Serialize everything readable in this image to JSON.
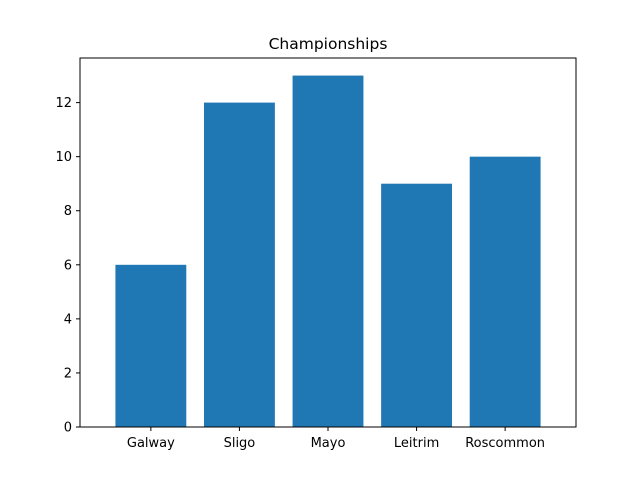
{
  "chart_data": {
    "type": "bar",
    "title": "Championships",
    "xlabel": "",
    "ylabel": "",
    "categories": [
      "Galway",
      "Sligo",
      "Mayo",
      "Leitrim",
      "Roscommon"
    ],
    "values": [
      6,
      12,
      13,
      9,
      10
    ],
    "ylim": [
      0,
      13.65
    ],
    "yticks": [
      0,
      2,
      4,
      6,
      8,
      10,
      12
    ],
    "grid": false,
    "legend": false,
    "colors": {
      "bar": "#1f77b4",
      "axes": "#000000",
      "background": "#ffffff"
    }
  }
}
